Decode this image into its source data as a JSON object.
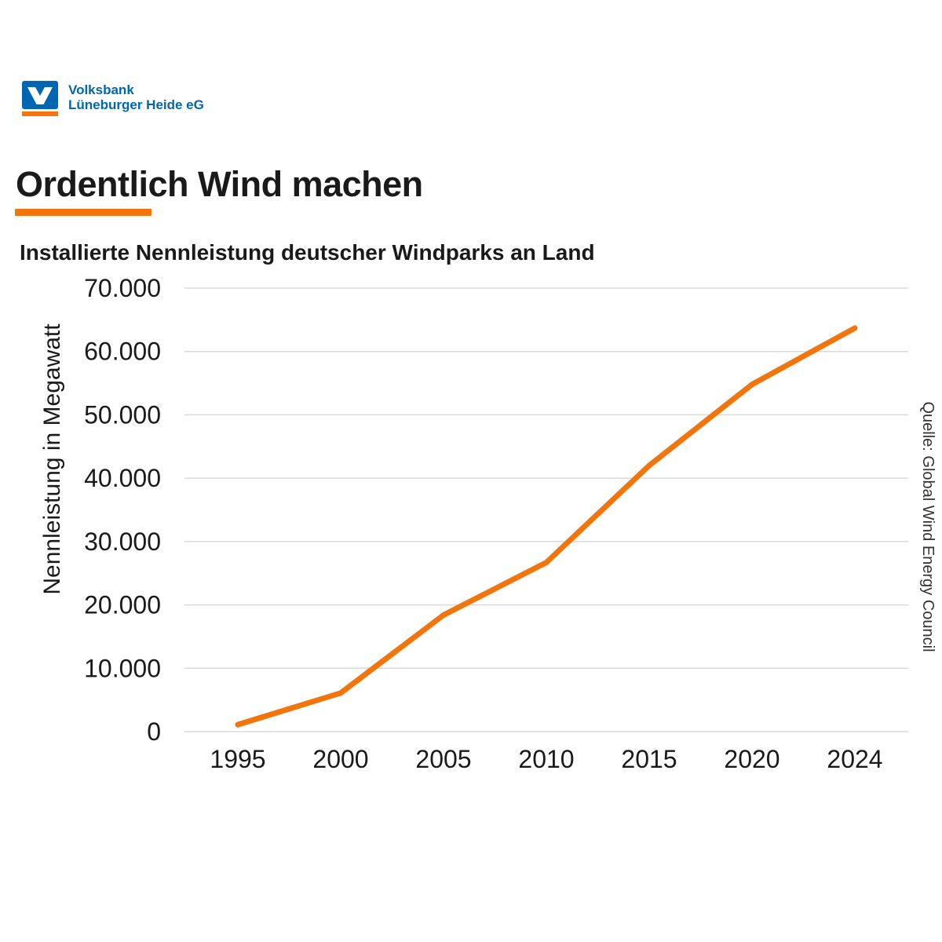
{
  "brand": {
    "name_line1": "Volksbank",
    "name_line2": "Lüneburger Heide eG"
  },
  "title": "Ordentlich Wind machen",
  "subtitle": "Installierte Nennleistung deutscher Windparks an Land",
  "source": "Quelle: Global Wind Energy Council",
  "colors": {
    "accent_orange": "#F1750A",
    "brand_blue": "#0066B2",
    "text": "#1A1A1A",
    "grid": "#DADADA",
    "source_text": "#333333"
  },
  "chart_data": {
    "type": "line",
    "title": "Installierte Nennleistung deutscher Windparks an Land",
    "categories": [
      "1995",
      "2000",
      "2005",
      "2010",
      "2015",
      "2020",
      "2024"
    ],
    "values": [
      1100,
      6100,
      18400,
      26700,
      42000,
      54800,
      63700
    ],
    "series_name": "Installierte Nennleistung",
    "xlabel": "",
    "ylabel": "Nennleistung in Megawatt",
    "unit": "Megawatt",
    "ylim": [
      0,
      70000
    ],
    "y_ticks": [
      {
        "value": 0,
        "label": "0"
      },
      {
        "value": 10000,
        "label": "10.000"
      },
      {
        "value": 20000,
        "label": "20.000"
      },
      {
        "value": 30000,
        "label": "30.000"
      },
      {
        "value": 40000,
        "label": "40.000"
      },
      {
        "value": 50000,
        "label": "50.000"
      },
      {
        "value": 60000,
        "label": "60.000"
      },
      {
        "value": 70000,
        "label": "70.000"
      }
    ],
    "grid": true,
    "legend": false,
    "line_color": "#F1750A",
    "line_width": 7
  }
}
